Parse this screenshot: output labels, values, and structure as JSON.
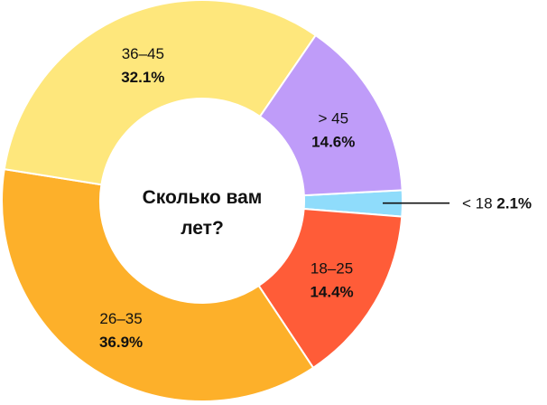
{
  "chart_data": {
    "type": "pie",
    "variant": "donut",
    "title_lines": [
      "Сколько вам",
      "лет?"
    ],
    "categories": [
      "< 18",
      "18–25",
      "26–35",
      "36–45",
      "> 45"
    ],
    "values": [
      2.1,
      14.4,
      36.9,
      32.1,
      14.6
    ],
    "value_labels": [
      "2.1%",
      "14.4%",
      "36.9%",
      "32.1%",
      "14.6%"
    ],
    "colors": [
      "#8fdcfb",
      "#ff5c38",
      "#fdb02a",
      "#fee77c",
      "#bf9cf9"
    ],
    "label_placement": {
      "< 18": "outside-right"
    },
    "legend": "none"
  }
}
